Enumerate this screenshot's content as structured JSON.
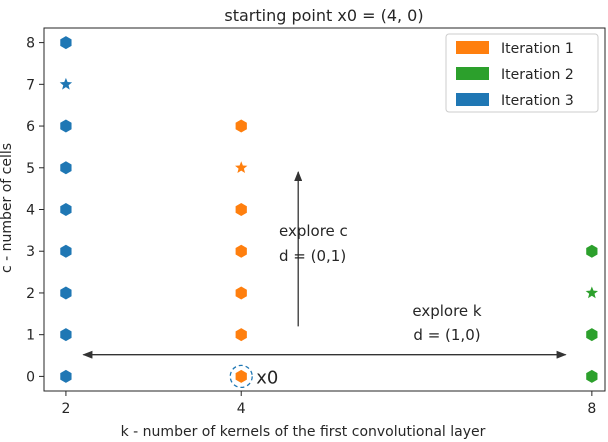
{
  "chart_data": {
    "type": "scatter",
    "title": "starting point x0 = (4, 0)",
    "xlabel": "k - number of kernels of the first convolutional layer",
    "ylabel": "c - number of cells",
    "xticks": [
      2,
      4,
      8
    ],
    "yticks": [
      0,
      1,
      2,
      3,
      4,
      5,
      6,
      7,
      8
    ],
    "xlim": [
      1.75,
      8.15
    ],
    "ylim": [
      -0.35,
      8.35
    ],
    "grid": false,
    "legend_position": "top-right",
    "colors": {
      "iteration1": "#ff7f0e",
      "iteration2": "#2ca02c",
      "iteration3": "#1f77b4",
      "annotation": "#333333"
    },
    "series": [
      {
        "name": "Iteration 1",
        "color": "#ff7f0e",
        "points": [
          {
            "x": 4,
            "y": 0,
            "marker": "hexagon"
          },
          {
            "x": 4,
            "y": 1,
            "marker": "hexagon"
          },
          {
            "x": 4,
            "y": 2,
            "marker": "hexagon"
          },
          {
            "x": 4,
            "y": 3,
            "marker": "hexagon"
          },
          {
            "x": 4,
            "y": 4,
            "marker": "hexagon"
          },
          {
            "x": 4,
            "y": 5,
            "marker": "star"
          },
          {
            "x": 4,
            "y": 6,
            "marker": "hexagon"
          }
        ]
      },
      {
        "name": "Iteration 2",
        "color": "#2ca02c",
        "points": [
          {
            "x": 8,
            "y": 0,
            "marker": "hexagon"
          },
          {
            "x": 8,
            "y": 1,
            "marker": "hexagon"
          },
          {
            "x": 8,
            "y": 2,
            "marker": "star"
          },
          {
            "x": 8,
            "y": 3,
            "marker": "hexagon"
          }
        ]
      },
      {
        "name": "Iteration 3",
        "color": "#1f77b4",
        "points": [
          {
            "x": 2,
            "y": 0,
            "marker": "hexagon"
          },
          {
            "x": 2,
            "y": 1,
            "marker": "hexagon"
          },
          {
            "x": 2,
            "y": 2,
            "marker": "hexagon"
          },
          {
            "x": 2,
            "y": 3,
            "marker": "hexagon"
          },
          {
            "x": 2,
            "y": 4,
            "marker": "hexagon"
          },
          {
            "x": 2,
            "y": 5,
            "marker": "hexagon"
          },
          {
            "x": 2,
            "y": 6,
            "marker": "hexagon"
          },
          {
            "x": 2,
            "y": 7,
            "marker": "star"
          },
          {
            "x": 2,
            "y": 8,
            "marker": "hexagon"
          }
        ]
      }
    ],
    "annotations": {
      "start_point": {
        "label": "x0",
        "x": 4,
        "y": 0
      },
      "explore_c": {
        "line1": "explore c",
        "line2": "d = (0,1)",
        "arrow": {
          "from": [
            4.65,
            1.2
          ],
          "to": [
            4.65,
            4.9
          ]
        }
      },
      "explore_k": {
        "line1": "explore k",
        "line2": "d = (1,0)",
        "arrow": {
          "from": [
            2.2,
            0.52
          ],
          "to": [
            7.7,
            0.52
          ]
        }
      }
    }
  }
}
